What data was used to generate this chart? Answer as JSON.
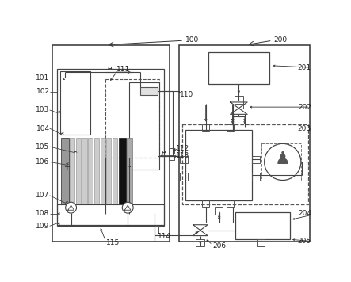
{
  "fig_width": 4.43,
  "fig_height": 3.56,
  "dpi": 100,
  "lc": "#444444",
  "lw_main": 1.0,
  "lw_thin": 0.7,
  "fs": 6.5,
  "bg": "#f5f5f5"
}
